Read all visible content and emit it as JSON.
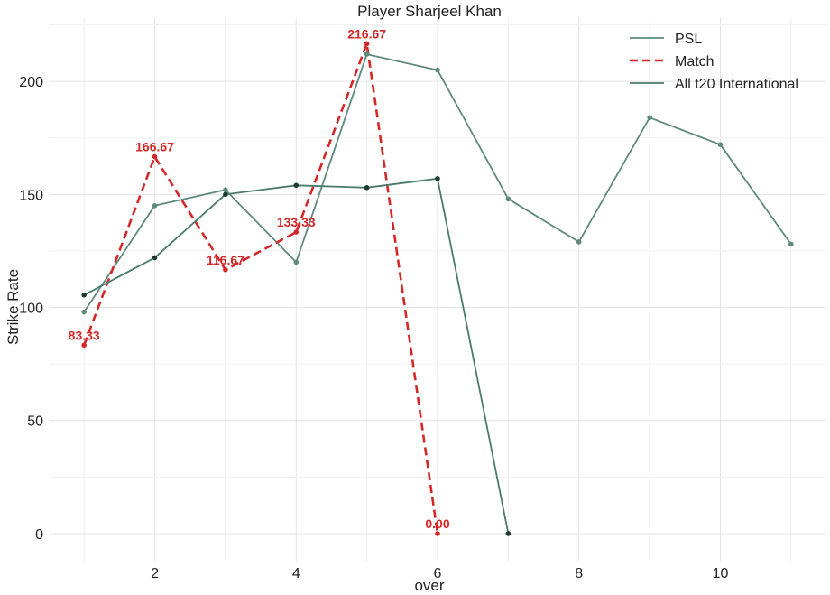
{
  "chart_data": {
    "type": "line",
    "title": "Player Sharjeel Khan",
    "xlabel": "over",
    "ylabel": "Strike Rate",
    "xlim": [
      0.5,
      11.5
    ],
    "ylim": [
      -12,
      228
    ],
    "x_ticks": [
      2,
      4,
      6,
      8,
      10
    ],
    "y_ticks": [
      0,
      50,
      100,
      150,
      200
    ],
    "grid": true,
    "legend_position": "top-right",
    "series": [
      {
        "name": "PSL",
        "color": "#5f8a7b",
        "style": "solid",
        "marker_color": "#5f8a7b",
        "x": [
          1,
          2,
          3,
          4,
          5,
          6,
          7,
          8,
          9,
          10,
          11
        ],
        "y": [
          98,
          145,
          152,
          120,
          212,
          205,
          148,
          129,
          184,
          172,
          128
        ]
      },
      {
        "name": "Match",
        "color": "#d62728",
        "style": "dashed",
        "marker_color": "#d62728",
        "x": [
          1,
          2,
          3,
          4,
          5,
          6
        ],
        "y": [
          83.33,
          166.67,
          116.67,
          133.33,
          216.67,
          0.0
        ],
        "data_labels": [
          "83.33",
          "166.67",
          "116.67",
          "133.33",
          "216.67",
          "0.00"
        ]
      },
      {
        "name": "All t20 International",
        "color": "#4a7a68",
        "style": "solid",
        "marker_color": "#1d3a2e",
        "x": [
          1,
          2,
          3,
          4,
          5,
          6,
          7
        ],
        "y": [
          105.5,
          122,
          150,
          154,
          153,
          157,
          0
        ]
      }
    ]
  }
}
